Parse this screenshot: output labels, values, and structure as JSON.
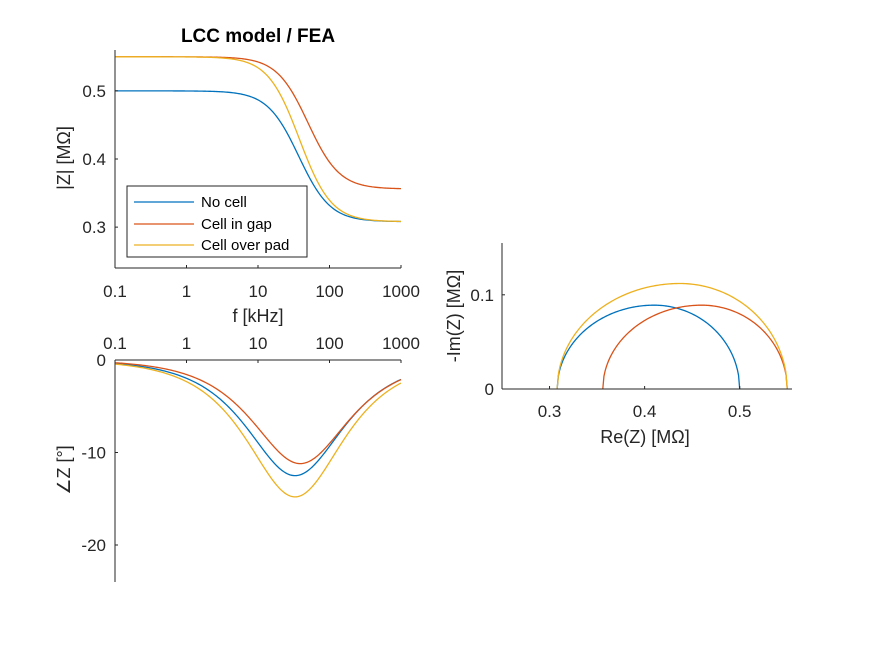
{
  "figure": {
    "title": "LCC model / FEA"
  },
  "colors": {
    "no_cell": "#0072BD",
    "cell_in_gap": "#D95319",
    "cell_over_pad": "#EDB120"
  },
  "legend": {
    "placement": "lower-left",
    "entries": [
      "No cell",
      "Cell in gap",
      "Cell over pad"
    ]
  },
  "chart_data": [
    {
      "id": "magnitude",
      "type": "line",
      "title": "LCC model / FEA",
      "xlabel": "f [kHz]",
      "ylabel": "|Z| [MΩ]",
      "xscale": "log",
      "xlim": [
        0.1,
        1000
      ],
      "ylim": [
        0.24,
        0.56
      ],
      "xticks": [
        0.1,
        1,
        10,
        100,
        1000
      ],
      "xtick_labels": [
        "0.1",
        "1",
        "10",
        "100",
        "1000"
      ],
      "yticks": [
        0.3,
        0.4,
        0.5
      ],
      "ytick_labels": [
        "0.3",
        "0.4",
        "0.5"
      ],
      "grid": false,
      "series": [
        {
          "name": "No cell",
          "params": {
            "R1": 0.5,
            "R2": 0.308,
            "fc": 33
          }
        },
        {
          "name": "Cell in gap",
          "params": {
            "R1": 0.55,
            "R2": 0.356,
            "fc": 45
          }
        },
        {
          "name": "Cell over pad",
          "params": {
            "R1": 0.55,
            "R2": 0.308,
            "fc": 33
          }
        }
      ]
    },
    {
      "id": "phase",
      "type": "line",
      "xlabel": "",
      "ylabel": "∠Z [°]",
      "xscale": "log",
      "xaxis_location": "top",
      "xlim": [
        0.1,
        1000
      ],
      "ylim": [
        -24,
        0
      ],
      "xticks": [
        0.1,
        1,
        10,
        100,
        1000
      ],
      "xtick_labels": [
        "0.1",
        "1",
        "10",
        "100",
        "1000"
      ],
      "yticks": [
        0,
        -10,
        -20
      ],
      "ytick_labels": [
        "0",
        "-10",
        "-20"
      ],
      "grid": false,
      "series": [
        {
          "name": "No cell",
          "peak_value": -12.5,
          "peak_at": 33
        },
        {
          "name": "Cell in gap",
          "peak_value": -11.2,
          "peak_at": 39
        },
        {
          "name": "Cell over pad",
          "peak_value": -14.8,
          "peak_at": 33
        }
      ]
    },
    {
      "id": "nyquist",
      "type": "line",
      "xlabel": "Re(Z) [MΩ]",
      "ylabel": "-Im(Z) [MΩ]",
      "xlim": [
        0.25,
        0.555
      ],
      "ylim": [
        0,
        0.155
      ],
      "xticks": [
        0.3,
        0.4,
        0.5
      ],
      "xtick_labels": [
        "0.3",
        "0.4",
        "0.5"
      ],
      "yticks": [
        0,
        0.1
      ],
      "ytick_labels": [
        "0",
        "0.1"
      ],
      "grid": false,
      "series": [
        {
          "name": "No cell",
          "re_range": [
            0.308,
            0.5
          ],
          "im_peak": 0.089,
          "re_at_peak": 0.41
        },
        {
          "name": "Cell in gap",
          "re_range": [
            0.356,
            0.55
          ],
          "im_peak": 0.089,
          "re_at_peak": 0.46
        },
        {
          "name": "Cell over pad",
          "re_range": [
            0.308,
            0.55
          ],
          "im_peak": 0.112,
          "re_at_peak": 0.437
        }
      ]
    }
  ]
}
